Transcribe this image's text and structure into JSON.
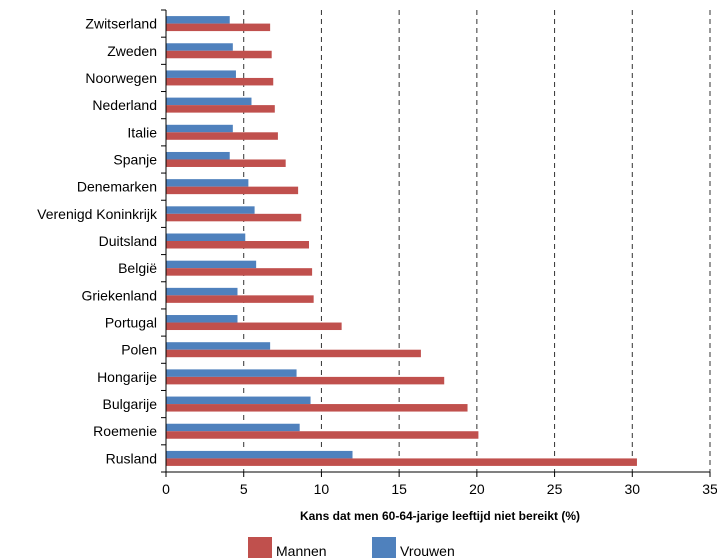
{
  "chart_data": {
    "type": "bar",
    "orientation": "horizontal",
    "categories": [
      "Zwitserland",
      "Zweden",
      "Noorwegen",
      "Nederland",
      "Italie",
      "Spanje",
      "Denemarken",
      "Verenigd Koninkrijk",
      "Duitsland",
      "België",
      "Griekenland",
      "Portugal",
      "Polen",
      "Hongarije",
      "Bulgarije",
      "Roemenie",
      "Rusland"
    ],
    "series": [
      {
        "name": "Mannen",
        "color": "#c0504d",
        "values": [
          6.7,
          6.8,
          6.9,
          7.0,
          7.2,
          7.7,
          8.5,
          8.7,
          9.2,
          9.4,
          9.5,
          11.3,
          16.4,
          17.9,
          19.4,
          20.1,
          30.3
        ]
      },
      {
        "name": "Vrouwen",
        "color": "#4f81bd",
        "values": [
          4.1,
          4.3,
          4.5,
          5.5,
          4.3,
          4.1,
          5.3,
          5.7,
          5.1,
          5.8,
          4.6,
          4.6,
          6.7,
          8.4,
          9.3,
          8.6,
          12.0
        ]
      }
    ],
    "xlabel": "Kans dat men 60-64-jarige leeftijd niet bereikt (%)",
    "xlim": [
      0,
      35
    ],
    "xticks": [
      0,
      5,
      10,
      15,
      20,
      25,
      30,
      35
    ],
    "grid": "vertical dashed",
    "legend_position": "bottom"
  }
}
